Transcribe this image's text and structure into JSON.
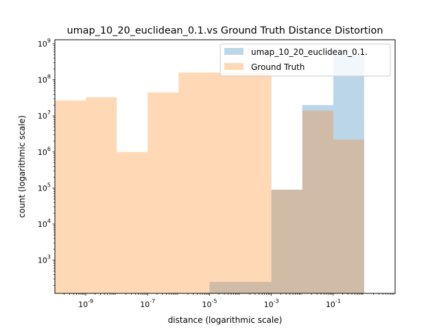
{
  "chart_data": {
    "type": "histogram",
    "title": "umap_10_20_euclidean_0.1.vs Ground Truth Distance Distortion",
    "xlabel": "distance (logarithmic scale)",
    "ylabel": "count (logarithmic scale)",
    "x_scale": "log",
    "y_scale": "log",
    "xlim": [
      1e-10,
      10.0
    ],
    "ylim": [
      120,
      1300000000.0
    ],
    "x_ticks": [
      {
        "value": 1e-09,
        "label": "10^-9"
      },
      {
        "value": 1e-07,
        "label": "10^-7"
      },
      {
        "value": 1e-05,
        "label": "10^-5"
      },
      {
        "value": 0.001,
        "label": "10^-3"
      },
      {
        "value": 0.1,
        "label": "10^-1"
      }
    ],
    "y_ticks": [
      {
        "value": 1000.0,
        "label": "10^3"
      },
      {
        "value": 10000.0,
        "label": "10^4"
      },
      {
        "value": 100000.0,
        "label": "10^5"
      },
      {
        "value": 1000000.0,
        "label": "10^6"
      },
      {
        "value": 10000000.0,
        "label": "10^7"
      },
      {
        "value": 100000000.0,
        "label": "10^8"
      },
      {
        "value": 1000000000.0,
        "label": "10^9"
      }
    ],
    "grid": false,
    "legend_position": "top-right",
    "series": [
      {
        "name": "umap_10_20_euclidean_0.1.",
        "color": "#1f77b4",
        "alpha": 0.3,
        "bins": [
          {
            "x0": 1e-05,
            "x1": 0.001,
            "count": 250
          },
          {
            "x0": 0.001,
            "x1": 0.01,
            "count": 90000.0
          },
          {
            "x0": 0.01,
            "x1": 0.1,
            "count": 20000000.0
          },
          {
            "x0": 0.1,
            "x1": 1,
            "count": 500000000.0
          }
        ]
      },
      {
        "name": "Ground Truth",
        "color": "#ff7f0e",
        "alpha": 0.3,
        "bins": [
          {
            "x0": 1e-10,
            "x1": 1e-09,
            "count": 27000000.0
          },
          {
            "x0": 1e-09,
            "x1": 1e-08,
            "count": 33000000.0
          },
          {
            "x0": 1e-08,
            "x1": 1e-07,
            "count": 1000000.0
          },
          {
            "x0": 1e-07,
            "x1": 1e-06,
            "count": 45000000.0
          },
          {
            "x0": 1e-06,
            "x1": 0.001,
            "count": 160000000.0
          },
          {
            "x0": 0.001,
            "x1": 0.01,
            "count": 90000.0
          },
          {
            "x0": 0.01,
            "x1": 0.1,
            "count": 14000000.0
          },
          {
            "x0": 0.1,
            "x1": 1,
            "count": 2200000.0
          }
        ]
      }
    ]
  }
}
